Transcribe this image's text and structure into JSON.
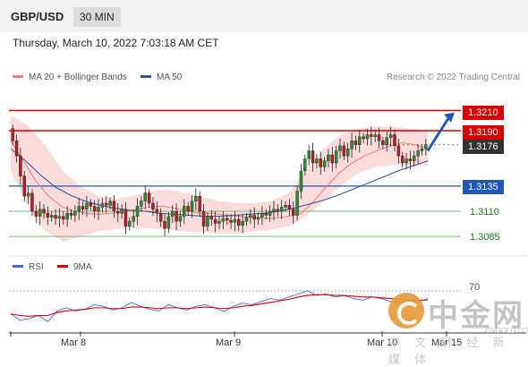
{
  "header": {
    "symbol": "GBP/USD",
    "timeframe": "30 MIN"
  },
  "timestamp": "Thursday, March 10, 2022 7:03:18 AM CET",
  "legend": [
    {
      "label": "MA 20 + Bollinger Bands",
      "color": "#f08080"
    },
    {
      "label": "MA 50",
      "color": "#2f5597"
    }
  ],
  "copyright": "Research © 2022 Trading Central",
  "levels": {
    "target": "1.3210",
    "resistance": "1.3190",
    "last_price": "1.3176",
    "pivot": "1.3135",
    "support1": "1.3110",
    "support2": "1.3085"
  },
  "rsi_legend": [
    {
      "label": "RSI",
      "color": "#4169e1"
    },
    {
      "label": "9MA",
      "color": "#d90000"
    }
  ],
  "rsi_level_label": "70",
  "x_ticks": [
    "Mar 8",
    "Mar 9",
    "Mar 10",
    "Mar 15"
  ],
  "watermark": {
    "text": "中金网",
    "subtitle": "中 文 财 经 新 媒 体",
    "url": "CNGOLD.COM.CN"
  },
  "colors": {
    "bull": "#2e8b2e",
    "bear": "#b52020",
    "band_fill": "#f9cfcf",
    "ma20": "#f08080",
    "ma50": "#2f5597",
    "rsi": "#4169e1",
    "rsi_ma": "#d90000",
    "arrow": "#1f58b7"
  },
  "chart_data": {
    "type": "candlestick",
    "instrument": "GBP/USD",
    "timeframe": "30 MIN",
    "price_range": [
      1.3078,
      1.3222
    ],
    "x_tick_labels": [
      "Mar 8",
      "Mar 9",
      "Mar 10",
      "Mar 15"
    ],
    "levels": [
      {
        "value": 1.321,
        "style": "red solid"
      },
      {
        "value": 1.319,
        "style": "red solid"
      },
      {
        "value": 1.3176,
        "style": "dark dotted"
      },
      {
        "value": 1.3135,
        "style": "blue solid"
      },
      {
        "value": 1.311,
        "style": "green solid"
      },
      {
        "value": 1.3085,
        "style": "green solid"
      }
    ],
    "closes": [
      1.318,
      1.3165,
      1.3145,
      1.3125,
      1.3128,
      1.311,
      1.3105,
      1.3112,
      1.3108,
      1.3104,
      1.3106,
      1.3103,
      1.3105,
      1.3102,
      1.3108,
      1.3106,
      1.311,
      1.3115,
      1.3112,
      1.3118,
      1.3115,
      1.311,
      1.3114,
      1.3118,
      1.3116,
      1.312,
      1.311,
      1.3108,
      1.3112,
      1.3095,
      1.31,
      1.3105,
      1.3115,
      1.312,
      1.3128,
      1.3118,
      1.3112,
      1.3108,
      1.31,
      1.3093,
      1.3105,
      1.311,
      1.31,
      1.3105,
      1.3115,
      1.311,
      1.312,
      1.3125,
      1.311,
      1.3095,
      1.3105,
      1.3102,
      1.3098,
      1.31,
      1.3103,
      1.3101,
      1.3099,
      1.3102,
      1.3096,
      1.31,
      1.3104,
      1.3106,
      1.3102,
      1.3104,
      1.3108,
      1.3106,
      1.311,
      1.3112,
      1.311,
      1.3114,
      1.3116,
      1.3112,
      1.3106,
      1.313,
      1.315,
      1.3162,
      1.317,
      1.3158,
      1.3162,
      1.3154,
      1.316,
      1.3166,
      1.3158,
      1.317,
      1.3175,
      1.3165,
      1.3172,
      1.318,
      1.3176,
      1.3184,
      1.3182,
      1.3186,
      1.3184,
      1.3186,
      1.318,
      1.3176,
      1.3183,
      1.3186,
      1.3175,
      1.3165,
      1.3158,
      1.3162,
      1.316,
      1.3165,
      1.317,
      1.3172,
      1.3176
    ],
    "ma20": [
      1.318,
      1.316,
      1.314,
      1.3125,
      1.3115,
      1.311,
      1.3108,
      1.3107,
      1.3108,
      1.311,
      1.3112,
      1.3114,
      1.3115,
      1.3113,
      1.311,
      1.3108,
      1.3108,
      1.3106,
      1.3105,
      1.3104,
      1.3103,
      1.3103,
      1.3105,
      1.3108,
      1.312,
      1.3135,
      1.3148,
      1.3158,
      1.3165,
      1.317,
      1.3175,
      1.3178,
      1.3176,
      1.3172
    ],
    "ma50": [
      1.3172,
      1.316,
      1.3146,
      1.3134,
      1.3126,
      1.312,
      1.3116,
      1.3113,
      1.3111,
      1.311,
      1.3108,
      1.3107,
      1.3106,
      1.3105,
      1.3105,
      1.3106,
      1.3107,
      1.3108,
      1.311,
      1.3113,
      1.3117,
      1.3121,
      1.3126,
      1.3132,
      1.3138,
      1.3144,
      1.315,
      1.3155,
      1.316
    ],
    "band_upper": [
      1.3205,
      1.3195,
      1.3175,
      1.315,
      1.3135,
      1.3125,
      1.3122,
      1.3125,
      1.313,
      1.3132,
      1.3128,
      1.3124,
      1.312,
      1.3118,
      1.3118,
      1.312,
      1.3128,
      1.315,
      1.3172,
      1.3186,
      1.3192,
      1.3194,
      1.3194,
      1.3192,
      1.319
    ],
    "band_lower": [
      1.315,
      1.3115,
      1.309,
      1.308,
      1.3085,
      1.309,
      1.3092,
      1.3094,
      1.3093,
      1.3092,
      1.309,
      1.3089,
      1.3088,
      1.3088,
      1.309,
      1.3092,
      1.3095,
      1.3105,
      1.312,
      1.3135,
      1.3148,
      1.3154,
      1.3156,
      1.3155,
      1.3155
    ],
    "rsi_range": [
      20,
      85
    ],
    "rsi_level": 70,
    "rsi": [
      40,
      32,
      34,
      38,
      30,
      44,
      48,
      44,
      46,
      52,
      50,
      45,
      48,
      55,
      50,
      46,
      44,
      52,
      48,
      45,
      50,
      52,
      48,
      43,
      50,
      54,
      52,
      56,
      60,
      58,
      62,
      66,
      70,
      64,
      66,
      62,
      64,
      60,
      58,
      62,
      60,
      56,
      54,
      58,
      56,
      60
    ],
    "rsi_ma": [
      40,
      38,
      37,
      38,
      38,
      42,
      44,
      45,
      46,
      48,
      48,
      47,
      47,
      49,
      49,
      48,
      47,
      48,
      48,
      47,
      48,
      49,
      48,
      47,
      48,
      50,
      51,
      53,
      55,
      57,
      59,
      62,
      64,
      65,
      65,
      64,
      64,
      63,
      62,
      62,
      61,
      60,
      59,
      58,
      58,
      58
    ]
  }
}
